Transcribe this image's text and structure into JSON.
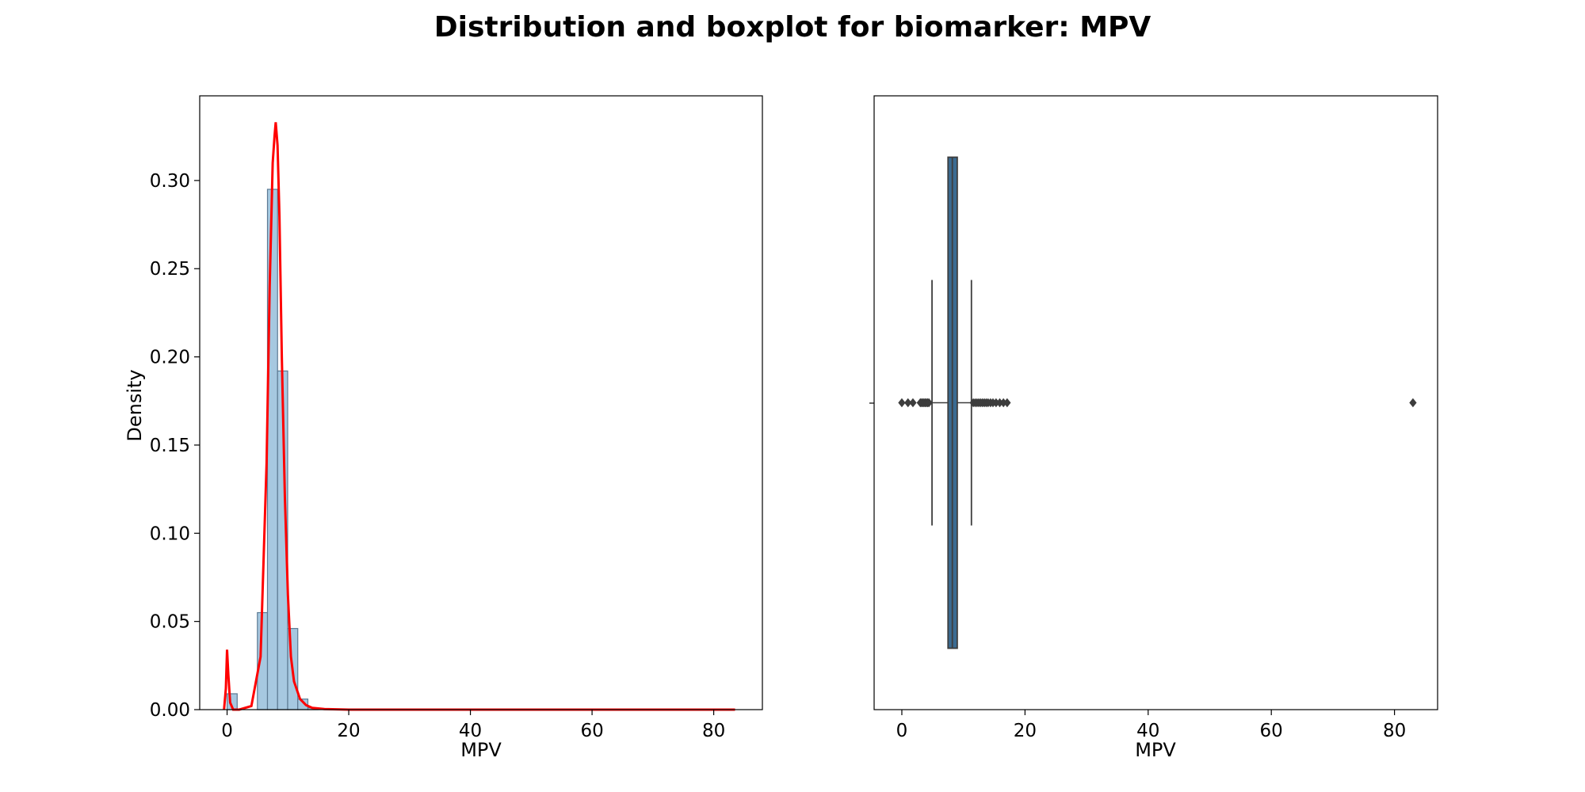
{
  "figure": {
    "title": "Distribution and boxplot for biomarker: MPV"
  },
  "chart_data": [
    {
      "type": "histogram",
      "xlabel": "MPV",
      "ylabel": "Density",
      "xlim": [
        -4.5,
        88
      ],
      "ylim": [
        0,
        0.348
      ],
      "xticks": [
        0,
        20,
        40,
        60,
        80
      ],
      "yticks": [
        0.0,
        0.05,
        0.1,
        0.15,
        0.2,
        0.25,
        0.3
      ],
      "ytick_labels": [
        "0.00",
        "0.05",
        "0.10",
        "0.15",
        "0.20",
        "0.25",
        "0.30"
      ],
      "bar_color": "#a6c8e0",
      "bar_edge": "#5d7a93",
      "bins": [
        {
          "x0": 0.0,
          "x1": 1.66,
          "density": 0.009
        },
        {
          "x0": 1.66,
          "x1": 3.32,
          "density": 0.0
        },
        {
          "x0": 3.32,
          "x1": 4.98,
          "density": 0.0
        },
        {
          "x0": 4.98,
          "x1": 6.64,
          "density": 0.055
        },
        {
          "x0": 6.64,
          "x1": 8.3,
          "density": 0.295
        },
        {
          "x0": 8.3,
          "x1": 9.96,
          "density": 0.192
        },
        {
          "x0": 9.96,
          "x1": 11.62,
          "density": 0.046
        },
        {
          "x0": 11.62,
          "x1": 13.28,
          "density": 0.006
        },
        {
          "x0": 13.28,
          "x1": 14.94,
          "density": 0.001
        }
      ],
      "kde": {
        "color": "#ff0000",
        "x": [
          -0.5,
          -0.2,
          0.0,
          0.2,
          0.5,
          1.0,
          2.0,
          4.0,
          5.5,
          6.5,
          7.0,
          7.5,
          7.8,
          8.0,
          8.3,
          8.6,
          9.0,
          9.5,
          10.0,
          10.5,
          11.0,
          12.0,
          13.0,
          14.0,
          16.0,
          20.0,
          40.0,
          60.0,
          83.5
        ],
        "y": [
          0.0,
          0.012,
          0.034,
          0.02,
          0.004,
          0.0,
          0.0,
          0.002,
          0.03,
          0.14,
          0.24,
          0.31,
          0.325,
          0.333,
          0.32,
          0.28,
          0.2,
          0.12,
          0.065,
          0.03,
          0.016,
          0.006,
          0.0025,
          0.001,
          0.0003,
          0.0,
          0.0,
          0.0,
          0.0
        ]
      }
    },
    {
      "type": "boxplot",
      "xlabel": "MPV",
      "xlim": [
        -4.5,
        87
      ],
      "xticks": [
        0,
        20,
        40,
        60,
        80
      ],
      "box_color": "#3a6b92",
      "box_edge": "#3d3d3d",
      "q1": 7.5,
      "median": 8.2,
      "q3": 9.0,
      "whisker_low": 4.9,
      "whisker_high": 11.3,
      "outliers": [
        0.0,
        1.0,
        1.8,
        3.0,
        3.2,
        3.4,
        3.6,
        3.8,
        4.0,
        4.2,
        4.4,
        11.6,
        11.9,
        12.2,
        12.5,
        12.8,
        13.1,
        13.4,
        13.7,
        14.0,
        14.4,
        14.8,
        15.3,
        15.9,
        16.5,
        17.1,
        83.0
      ]
    }
  ]
}
